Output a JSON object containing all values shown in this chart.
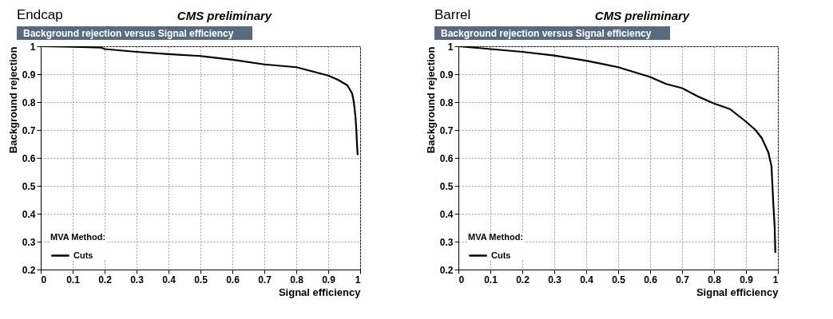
{
  "chart_data": [
    {
      "type": "line",
      "title": "Endcap",
      "subtitle": "Background rejection versus Signal efficiency",
      "annotations": [
        "CMS preliminary"
      ],
      "xlabel": "Signal efficiency",
      "ylabel": "Background rejection",
      "legend_title": "MVA Method:",
      "legend": "bottom left",
      "grid": true,
      "xlim": [
        0,
        1
      ],
      "ylim": [
        0.2,
        1
      ],
      "xticks": [
        0,
        0.1,
        0.2,
        0.3,
        0.4,
        0.5,
        0.6,
        0.7,
        0.8,
        0.9,
        1
      ],
      "yticks": [
        0.2,
        0.3,
        0.4,
        0.5,
        0.6,
        0.7,
        0.8,
        0.9,
        1
      ],
      "series": [
        {
          "name": "Cuts",
          "color": "#000000",
          "x": [
            0,
            0.1,
            0.19,
            0.2,
            0.3,
            0.4,
            0.5,
            0.6,
            0.7,
            0.8,
            0.85,
            0.9,
            0.93,
            0.96,
            0.975,
            0.98,
            0.985,
            0.988,
            0.99,
            0.992
          ],
          "values": [
            1,
            0.998,
            0.995,
            0.99,
            0.98,
            0.972,
            0.965,
            0.952,
            0.935,
            0.925,
            0.91,
            0.895,
            0.88,
            0.86,
            0.83,
            0.8,
            0.75,
            0.7,
            0.65,
            0.61
          ]
        }
      ]
    },
    {
      "type": "line",
      "title": "Barrel",
      "subtitle": "Background rejection versus Signal efficiency",
      "annotations": [
        "CMS preliminary"
      ],
      "xlabel": "Signal efficiency",
      "ylabel": "Background rejection",
      "legend_title": "MVA Method:",
      "legend": "bottom left",
      "grid": true,
      "xlim": [
        0,
        1
      ],
      "ylim": [
        0.2,
        1
      ],
      "xticks": [
        0,
        0.1,
        0.2,
        0.3,
        0.4,
        0.5,
        0.6,
        0.7,
        0.8,
        0.9,
        1
      ],
      "yticks": [
        0.2,
        0.3,
        0.4,
        0.5,
        0.6,
        0.7,
        0.8,
        0.9,
        1
      ],
      "series": [
        {
          "name": "Cuts",
          "color": "#000000",
          "x": [
            0,
            0.1,
            0.2,
            0.3,
            0.4,
            0.5,
            0.6,
            0.65,
            0.7,
            0.75,
            0.8,
            0.85,
            0.9,
            0.93,
            0.95,
            0.97,
            0.98,
            0.985,
            0.99,
            0.992
          ],
          "values": [
            1,
            0.99,
            0.98,
            0.967,
            0.948,
            0.925,
            0.89,
            0.865,
            0.85,
            0.82,
            0.795,
            0.775,
            0.73,
            0.7,
            0.67,
            0.62,
            0.57,
            0.45,
            0.35,
            0.26
          ]
        }
      ]
    }
  ]
}
